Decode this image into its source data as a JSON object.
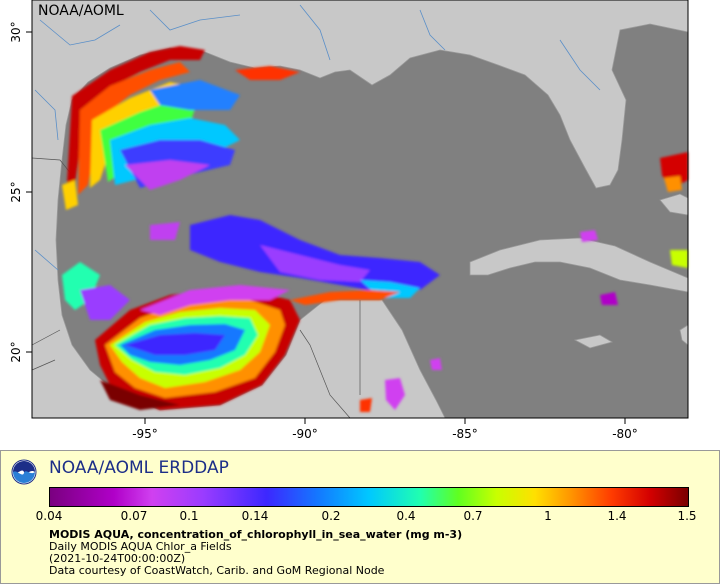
{
  "map": {
    "watermark": "NOAA/AOML",
    "lon_ticks": [
      "-95°",
      "-90°",
      "-85°",
      "-80°"
    ],
    "lat_ticks": [
      "30°",
      "25°",
      "20°"
    ],
    "colors": {
      "land": "#c8c8c8",
      "no_data": "#808080",
      "borders": "#555555",
      "rivers": "#5a8fc8"
    }
  },
  "legend": {
    "logo_icon": "noaa-logo-icon",
    "title": "NOAA/AOML ERDDAP",
    "scale_labels": [
      "0.04",
      "0.07",
      "0.1",
      "0.14",
      "0.2",
      "0.4",
      "0.7",
      "1",
      "1.4",
      "1.5"
    ],
    "variable": "MODIS AQUA, concentration_of_chlorophyll_in_sea_water (mg m-3)",
    "line1": "Daily MODIS AQUA Chlor_a Fields",
    "line2": "(2021-10-24T00:00:00Z)",
    "line3": "Data courtesy of CoastWatch, Carib. and GoM Regional Node"
  }
}
